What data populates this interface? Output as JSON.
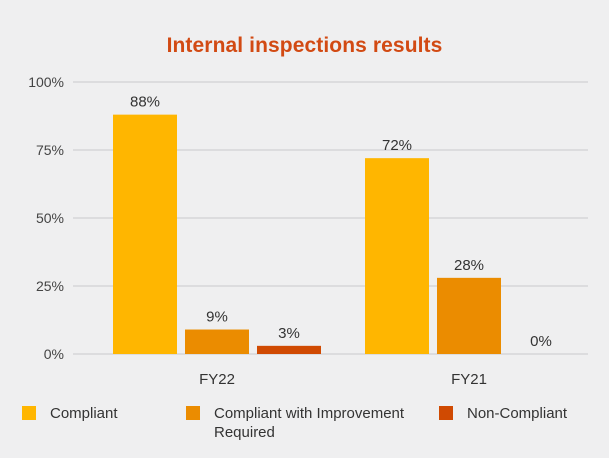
{
  "chart_data": {
    "type": "bar",
    "title": "Internal inspections results",
    "xlabel": "",
    "ylabel": "",
    "categories": [
      "FY22",
      "FY21"
    ],
    "series": [
      {
        "name": "Compliant",
        "values": [
          88,
          72
        ],
        "labels": [
          "88%",
          "72%"
        ],
        "color": "#ffb600"
      },
      {
        "name": "Compliant with Improvement Required",
        "values": [
          9,
          28
        ],
        "labels": [
          "9%",
          "28%"
        ],
        "color": "#eb8c00"
      },
      {
        "name": "Non-Compliant",
        "values": [
          3,
          0
        ],
        "labels": [
          "3%",
          "0%"
        ],
        "color": "#d04a02"
      }
    ],
    "ylim": [
      0,
      100
    ],
    "yticks": [
      0,
      25,
      50,
      75,
      100
    ],
    "ytick_labels": [
      "0%",
      "25%",
      "50%",
      "75%",
      "100%"
    ],
    "grid": true,
    "legend_position": "bottom"
  }
}
